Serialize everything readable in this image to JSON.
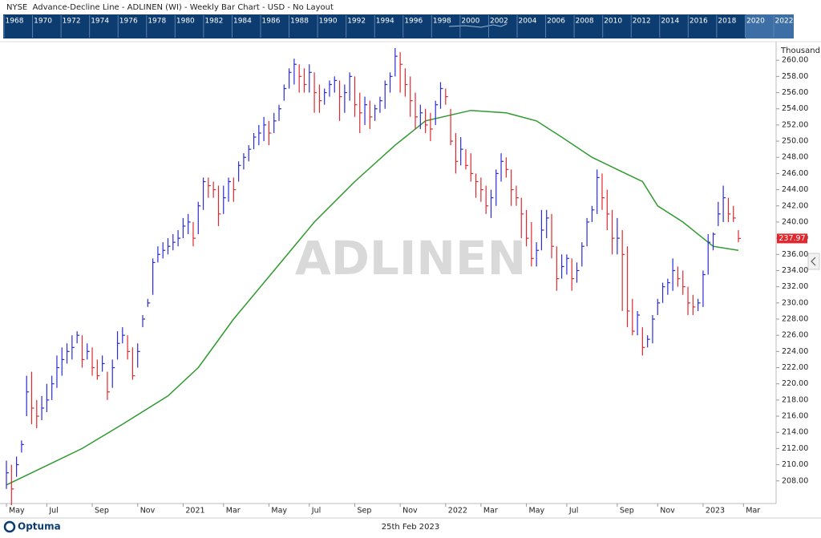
{
  "header": {
    "title": "NYSE  Advance-Decline Line - ADLINEN (WI) - Weekly Bar Chart - USD - No Layout"
  },
  "overview": {
    "years": [
      "1968",
      "1970",
      "1972",
      "1974",
      "1976",
      "1978",
      "1980",
      "1982",
      "1984",
      "1986",
      "1988",
      "1990",
      "1992",
      "1994",
      "1996",
      "1998",
      "2000",
      "2002",
      "2004",
      "2006",
      "2008",
      "2010",
      "2012",
      "2014",
      "2016",
      "2018",
      "2020",
      "2022"
    ]
  },
  "chart_data": {
    "type": "bar",
    "watermark": "ADLINEN",
    "y_unit": "Thousand",
    "up_color": "#2b2bd6",
    "down_color": "#e0282e",
    "categories": [
      "May",
      null,
      null,
      null,
      null,
      null,
      null,
      null,
      "Jul",
      null,
      null,
      null,
      null,
      null,
      null,
      null,
      null,
      "Sep",
      null,
      null,
      null,
      null,
      null,
      null,
      null,
      null,
      "Nov",
      null,
      null,
      null,
      null,
      null,
      null,
      null,
      null,
      "2021",
      null,
      null,
      null,
      null,
      null,
      null,
      null,
      "Mar",
      null,
      null,
      null,
      null,
      null,
      null,
      null,
      null,
      "May",
      null,
      null,
      null,
      null,
      null,
      null,
      null,
      "Jul",
      null,
      null,
      null,
      null,
      null,
      null,
      null,
      null,
      "Sep",
      null,
      null,
      null,
      null,
      null,
      null,
      null,
      null,
      "Nov",
      null,
      null,
      null,
      null,
      null,
      null,
      null,
      null,
      "2022",
      null,
      null,
      null,
      null,
      null,
      null,
      "Mar",
      null,
      null,
      null,
      null,
      null,
      null,
      null,
      null,
      "May",
      null,
      null,
      null,
      null,
      null,
      null,
      null,
      "Jul",
      null,
      null,
      null,
      null,
      null,
      null,
      null,
      null,
      null,
      "Sep",
      null,
      null,
      null,
      null,
      null,
      null,
      null,
      "Nov",
      null,
      null,
      null,
      null,
      null,
      null,
      null,
      null,
      "2023",
      null,
      null,
      null,
      null,
      null,
      null,
      null,
      "Mar"
    ],
    "high": [
      210.5,
      210,
      211,
      213,
      221,
      221.5,
      218,
      218.5,
      220,
      221,
      223.5,
      224.5,
      225,
      226,
      226.5,
      226,
      225,
      224.5,
      223,
      223.5,
      221.5,
      223,
      226.5,
      227,
      226,
      224.5,
      225,
      228.5,
      230.5,
      235.5,
      237,
      237.5,
      238,
      238.5,
      239,
      240.5,
      241,
      240,
      242.5,
      245.5,
      245.5,
      245,
      244.5,
      244.5,
      245.5,
      245.5,
      247.5,
      248.5,
      249.5,
      251,
      252,
      253,
      252.5,
      253.5,
      254.5,
      257,
      259,
      260.2,
      259.5,
      259,
      259.5,
      258.5,
      257,
      256.5,
      257.5,
      258,
      257.5,
      257,
      258.5,
      258,
      256,
      255.5,
      255,
      254.5,
      255.5,
      257.5,
      258.5,
      261.5,
      261,
      259,
      258,
      256,
      254.5,
      254,
      253.5,
      255,
      257.3,
      256.5,
      254,
      251,
      250.5,
      249,
      248.5,
      246,
      245.5,
      244.5,
      244,
      246.5,
      248.5,
      248,
      246.5,
      244.5,
      243,
      241.5,
      240,
      237.5,
      241.5,
      241.5,
      241,
      237,
      236,
      236,
      235.5,
      235,
      237.5,
      240.5,
      242,
      246.5,
      246,
      244,
      241.5,
      240.5,
      239,
      237,
      230.5,
      229,
      227,
      226,
      228.5,
      230.5,
      232.5,
      233,
      235.5,
      234.5,
      234,
      232,
      231,
      230.5,
      234,
      238.5,
      238.7,
      242.5,
      244.5,
      243,
      242,
      239,
      null
    ],
    "low": [
      207,
      205,
      208.5,
      211.5,
      216,
      215,
      214.5,
      215.5,
      216.5,
      218,
      219.5,
      221,
      222.5,
      223,
      225,
      222,
      223,
      221,
      220.5,
      221.5,
      218,
      219.5,
      223,
      225,
      223,
      220.5,
      222,
      227,
      229.5,
      231,
      235,
      235.5,
      236,
      236.5,
      237,
      238,
      238.5,
      237,
      238.5,
      241.5,
      243,
      243,
      239.5,
      241,
      242.5,
      242.5,
      245,
      246.5,
      247.5,
      249,
      249.5,
      250,
      249.5,
      251,
      252.5,
      255,
      256.5,
      257,
      256,
      256,
      256,
      253.5,
      253.5,
      254.5,
      255.5,
      256,
      252.5,
      253.5,
      255,
      253,
      251,
      252,
      251.5,
      252.5,
      253.5,
      254,
      256,
      258,
      256,
      255.5,
      253,
      251.5,
      251.5,
      251,
      250,
      252,
      254,
      254.5,
      249.5,
      246,
      247,
      246.5,
      245,
      243,
      242.5,
      241,
      240.5,
      242,
      245,
      245.5,
      242,
      242,
      238,
      237,
      234.5,
      234.5,
      236.5,
      238,
      235.5,
      231.5,
      233,
      233.5,
      231.5,
      232.5,
      234.5,
      237,
      240,
      241,
      241.5,
      239,
      236,
      236,
      229,
      227,
      226,
      226,
      223.5,
      224.5,
      225,
      228.5,
      230,
      231,
      231.5,
      232,
      231,
      228.5,
      228.5,
      229,
      229.5,
      233.5,
      236.5,
      239.5,
      240,
      240,
      240,
      237.5,
      null
    ],
    "close": [
      209,
      207,
      210,
      212.5,
      219,
      217,
      216,
      217,
      218,
      220,
      222,
      223,
      224,
      224.5,
      226,
      223,
      224,
      222,
      221,
      222.5,
      219,
      222,
      225,
      226,
      224,
      221,
      224,
      228,
      230,
      235,
      236,
      236.5,
      237,
      237.5,
      238,
      239.5,
      240,
      238,
      242,
      245,
      244.5,
      244,
      241,
      243,
      245,
      244,
      247,
      248,
      249,
      250.5,
      251,
      252,
      251,
      252.5,
      254,
      256.5,
      258.5,
      259.5,
      258,
      257,
      258.5,
      256,
      255,
      256,
      257,
      257.5,
      255.5,
      256,
      258,
      254.5,
      253.5,
      254.5,
      253,
      254,
      255,
      257,
      258,
      260.5,
      259.5,
      257,
      255,
      253,
      253.5,
      252,
      251.5,
      254.5,
      256.5,
      255.5,
      250,
      247.5,
      249,
      247,
      246,
      245,
      244,
      242,
      243,
      246,
      247.5,
      246.5,
      244,
      243,
      241,
      238,
      235.5,
      236.5,
      239,
      240.5,
      237,
      233,
      234.5,
      235.5,
      233,
      234,
      237,
      240,
      241.5,
      245.5,
      243,
      241,
      238,
      238,
      236,
      229,
      226.5,
      228.5,
      224.5,
      225.5,
      228,
      230,
      232,
      232.5,
      234,
      233,
      232,
      230,
      229.5,
      230,
      233.5,
      237.5,
      238.5,
      241,
      243,
      241,
      240.5,
      237.97,
      null
    ],
    "moving_average": {
      "color": "#2f9a2f",
      "x": [
        0,
        5,
        15,
        23,
        32,
        38,
        45,
        53,
        61,
        69,
        77,
        83,
        92,
        99,
        105,
        110,
        116,
        121,
        126,
        129,
        134,
        137,
        140,
        145
      ],
      "values": [
        207.5,
        209,
        212,
        215,
        218.5,
        222,
        228,
        234,
        240,
        245,
        249.5,
        252.5,
        253.8,
        253.5,
        252.5,
        250.5,
        248,
        246.5,
        245,
        242,
        240,
        238.5,
        237,
        236.5
      ]
    },
    "ylim": [
      205.2,
      262
    ],
    "yticks": [
      {
        "value": 208,
        "label": "208.00"
      },
      {
        "value": 210,
        "label": "210.00"
      },
      {
        "value": 212,
        "label": "212.00"
      },
      {
        "value": 214,
        "label": "214.00"
      },
      {
        "value": 216,
        "label": "216.00"
      },
      {
        "value": 218,
        "label": "218.00"
      },
      {
        "value": 220,
        "label": "220.00"
      },
      {
        "value": 222,
        "label": "222.00"
      },
      {
        "value": 224,
        "label": "224.00"
      },
      {
        "value": 226,
        "label": "226.00"
      },
      {
        "value": 228,
        "label": "228.00"
      },
      {
        "value": 230,
        "label": "230.00"
      },
      {
        "value": 232,
        "label": "232.00"
      },
      {
        "value": 234,
        "label": "234.00"
      },
      {
        "value": 236,
        "label": "236.00"
      },
      {
        "value": 238,
        "label": "238.00"
      },
      {
        "value": 240,
        "label": "240.00"
      },
      {
        "value": 242,
        "label": "242.00"
      },
      {
        "value": 244,
        "label": "244.00"
      },
      {
        "value": 246,
        "label": "246.00"
      },
      {
        "value": 248,
        "label": "248.00"
      },
      {
        "value": 250,
        "label": "250.00"
      },
      {
        "value": 252,
        "label": "252.00"
      },
      {
        "value": 254,
        "label": "254.00"
      },
      {
        "value": 256,
        "label": "256.00"
      },
      {
        "value": 258,
        "label": "258.00"
      },
      {
        "value": 260,
        "label": "260.00"
      }
    ]
  },
  "footer": {
    "brand": "Optuma",
    "date": "25th Feb 2023"
  }
}
